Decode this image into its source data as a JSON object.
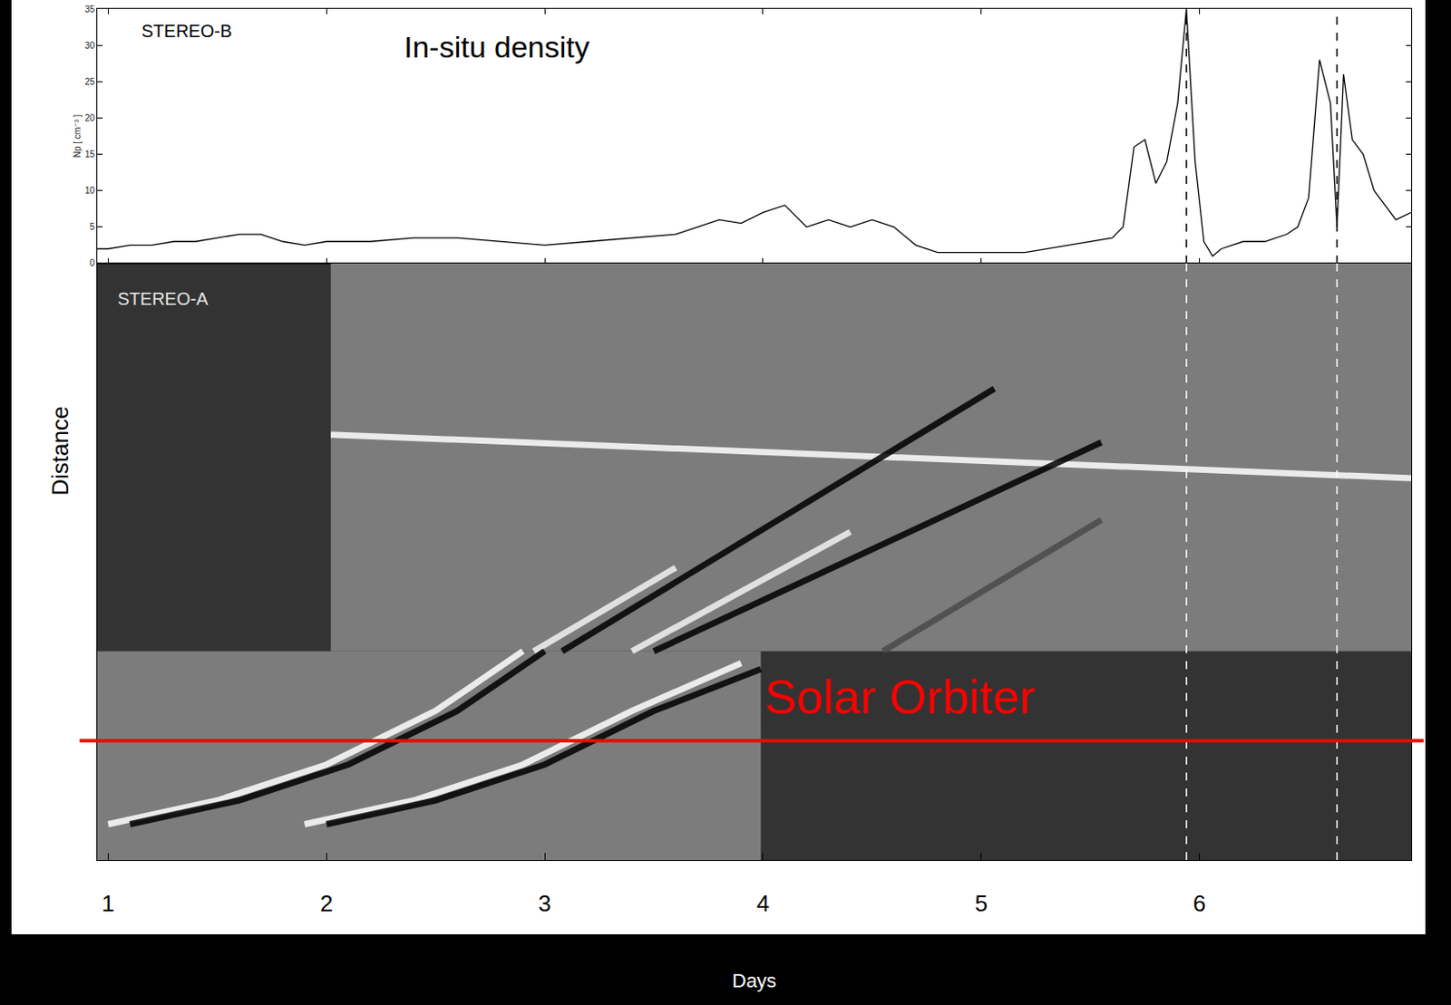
{
  "chart_data": [
    {
      "type": "line",
      "title": "In-situ density",
      "y_label": "Np [ cm⁻³ ]",
      "xlim": [
        0.95,
        6.97
      ],
      "xticks": [
        1,
        2,
        3,
        4,
        5,
        6
      ],
      "ylim": [
        0,
        35
      ],
      "yticks": [
        0,
        5,
        10,
        15,
        20,
        25,
        30,
        35
      ],
      "tick_labels": "y",
      "grid": false,
      "series": [
        {
          "name": "STEREO-B",
          "color": "#000000",
          "x": [
            0.95,
            1.0,
            1.1,
            1.2,
            1.3,
            1.4,
            1.5,
            1.6,
            1.7,
            1.8,
            1.9,
            2.0,
            2.2,
            2.4,
            2.6,
            2.8,
            3.0,
            3.2,
            3.4,
            3.6,
            3.7,
            3.8,
            3.9,
            4.0,
            4.1,
            4.2,
            4.3,
            4.4,
            4.5,
            4.6,
            4.7,
            4.8,
            5.0,
            5.2,
            5.4,
            5.5,
            5.6,
            5.65,
            5.7,
            5.75,
            5.8,
            5.85,
            5.9,
            5.94,
            5.98,
            6.02,
            6.06,
            6.1,
            6.2,
            6.3,
            6.4,
            6.45,
            6.5,
            6.55,
            6.6,
            6.63,
            6.66,
            6.7,
            6.75,
            6.8,
            6.9,
            6.97
          ],
          "values": [
            2,
            2,
            2.5,
            2.5,
            3,
            3,
            3.5,
            4,
            4,
            3,
            2.5,
            3,
            3,
            3.5,
            3.5,
            3,
            2.5,
            3,
            3.5,
            4,
            5,
            6,
            5.5,
            7,
            8,
            5,
            6,
            5,
            6,
            5,
            2.5,
            1.5,
            1.5,
            1.5,
            2.5,
            3,
            3.5,
            5,
            16,
            17,
            11,
            14,
            22,
            35,
            14,
            3,
            1,
            2,
            3,
            3,
            4,
            5,
            9,
            28,
            22,
            5,
            26,
            17,
            15,
            10,
            6,
            7
          ]
        }
      ]
    },
    {
      "type": "line",
      "x_label": "Days",
      "y_label": "Distance",
      "xlim": [
        0.95,
        6.97
      ],
      "xticks": [
        1,
        2,
        3,
        4,
        5,
        6
      ],
      "ylim": [
        0,
        1
      ],
      "tick_labels": "x",
      "grid": false,
      "panels": [
        {
          "name": "STEREO-A",
          "x": [
            2.02,
            6.97
          ],
          "y": [
            0.35,
            1
          ]
        },
        {
          "name": "Solar Orbiter",
          "x": [
            0.95,
            3.99
          ],
          "y": [
            0,
            0.35
          ]
        }
      ],
      "vlines": [
        5.94,
        6.63
      ],
      "hline": 0.2,
      "series": [
        {
          "color": "#ffffff",
          "x": [
            2.02,
            6.97
          ],
          "values": [
            0.713,
            0.64
          ]
        },
        {
          "color": "#f2f2f2",
          "x": [
            2.95,
            3.6
          ],
          "values": [
            0.35,
            0.49
          ]
        },
        {
          "color": "#000000",
          "x": [
            3.08,
            5.06
          ],
          "values": [
            0.35,
            0.79
          ]
        },
        {
          "color": "#f2f2f2",
          "x": [
            3.4,
            4.4
          ],
          "values": [
            0.35,
            0.55
          ]
        },
        {
          "color": "#000000",
          "x": [
            3.5,
            5.55
          ],
          "values": [
            0.35,
            0.7
          ]
        },
        {
          "color": "#4a4a4a",
          "x": [
            4.55,
            5.55
          ],
          "values": [
            0.35,
            0.57
          ]
        },
        {
          "color": "#ffffff",
          "x": [
            1.0,
            1.5,
            2.0,
            2.5,
            2.9
          ],
          "values": [
            0.06,
            0.1,
            0.16,
            0.25,
            0.35
          ]
        },
        {
          "color": "#000000",
          "x": [
            1.1,
            1.6,
            2.1,
            2.6,
            3.0
          ],
          "values": [
            0.06,
            0.1,
            0.16,
            0.25,
            0.35
          ]
        },
        {
          "color": "#ffffff",
          "x": [
            1.9,
            2.4,
            2.9,
            3.4,
            3.9
          ],
          "values": [
            0.06,
            0.1,
            0.16,
            0.25,
            0.33
          ]
        },
        {
          "color": "#000000",
          "x": [
            2.0,
            2.5,
            3.0,
            3.5,
            3.99
          ],
          "values": [
            0.06,
            0.1,
            0.16,
            0.25,
            0.32
          ]
        }
      ]
    }
  ]
}
